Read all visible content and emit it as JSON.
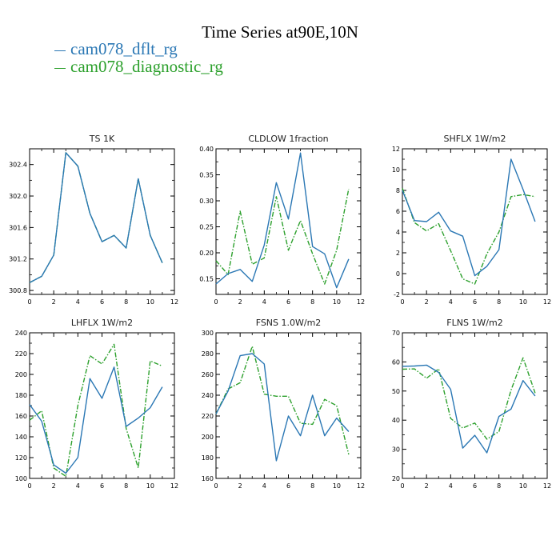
{
  "title": "Time Series at90E,10N",
  "legend": [
    {
      "label": "cam078_dflt_rg",
      "color": "#2a77b4"
    },
    {
      "label": "cam078_diagnostic_rg",
      "color": "#2ca02c"
    }
  ],
  "chart_data": [
    {
      "type": "line",
      "title": "TS",
      "units": "1K",
      "xlim": [
        0,
        12
      ],
      "xticks": [
        0,
        2,
        4,
        6,
        8,
        10,
        12
      ],
      "ylim": [
        300.75,
        302.6
      ],
      "yticks": [
        300.8,
        301.2,
        301.6,
        302.0,
        302.4
      ],
      "ytick_labels": [
        "300.8",
        "301.2",
        "301.6",
        "302.0",
        "302.4"
      ],
      "x": [
        0,
        1,
        2,
        3,
        4,
        5,
        6,
        7,
        8,
        9,
        10,
        11
      ],
      "series": [
        {
          "name": "cam078_dflt_rg",
          "values": [
            300.9,
            300.98,
            301.25,
            302.55,
            302.38,
            301.78,
            301.42,
            301.5,
            301.34,
            302.22,
            301.5,
            301.15
          ]
        },
        {
          "name": "cam078_diagnostic_rg",
          "values": [
            300.9,
            300.98,
            301.25,
            302.55,
            302.38,
            301.78,
            301.42,
            301.5,
            301.34,
            302.22,
            301.5,
            301.15
          ]
        }
      ]
    },
    {
      "type": "line",
      "title": "CLDLOW",
      "units": "1fraction",
      "xlim": [
        0,
        12
      ],
      "xticks": [
        0,
        2,
        4,
        6,
        8,
        10,
        12
      ],
      "ylim": [
        0.12,
        0.4
      ],
      "yticks": [
        0.15,
        0.2,
        0.25,
        0.3,
        0.35,
        0.4
      ],
      "ytick_labels": [
        "0.15",
        "0.20",
        "0.25",
        "0.30",
        "0.35",
        "0.40"
      ],
      "x": [
        0,
        1,
        2,
        3,
        4,
        5,
        6,
        7,
        8,
        9,
        10,
        11
      ],
      "series": [
        {
          "name": "cam078_dflt_rg",
          "values": [
            0.14,
            0.16,
            0.168,
            0.145,
            0.215,
            0.335,
            0.265,
            0.392,
            0.212,
            0.198,
            0.133,
            0.188
          ]
        },
        {
          "name": "cam078_diagnostic_rg",
          "values": [
            0.185,
            0.158,
            0.28,
            0.178,
            0.19,
            0.308,
            0.205,
            0.262,
            0.198,
            0.14,
            0.205,
            0.323
          ]
        }
      ]
    },
    {
      "type": "line",
      "title": "SHFLX",
      "units": "1W/m2",
      "xlim": [
        0,
        12
      ],
      "xticks": [
        0,
        2,
        4,
        6,
        8,
        10,
        12
      ],
      "ylim": [
        -2,
        12
      ],
      "yticks": [
        -2,
        0,
        2,
        4,
        6,
        8,
        10,
        12
      ],
      "ytick_labels": [
        "-2",
        "0",
        "2",
        "4",
        "6",
        "8",
        "10",
        "12"
      ],
      "x": [
        0,
        1,
        2,
        3,
        4,
        5,
        6,
        7,
        8,
        9,
        10,
        11
      ],
      "series": [
        {
          "name": "cam078_dflt_rg",
          "values": [
            8.0,
            5.1,
            5.0,
            5.9,
            4.1,
            3.6,
            -0.2,
            0.7,
            2.3,
            11.0,
            8.1,
            5.0
          ]
        },
        {
          "name": "cam078_diagnostic_rg",
          "values": [
            8.2,
            4.9,
            4.1,
            4.8,
            2.2,
            -0.5,
            -1.0,
            1.9,
            4.0,
            7.4,
            7.6,
            7.4
          ]
        }
      ]
    },
    {
      "type": "line",
      "title": "LHFLX",
      "units": "1W/m2",
      "xlim": [
        0,
        12
      ],
      "xticks": [
        0,
        2,
        4,
        6,
        8,
        10,
        12
      ],
      "ylim": [
        100,
        240
      ],
      "yticks": [
        100,
        120,
        140,
        160,
        180,
        200,
        220,
        240
      ],
      "ytick_labels": [
        "100",
        "120",
        "140",
        "160",
        "180",
        "200",
        "220",
        "240"
      ],
      "x": [
        0,
        1,
        2,
        3,
        4,
        5,
        6,
        7,
        8,
        9,
        10,
        11
      ],
      "series": [
        {
          "name": "cam078_dflt_rg",
          "values": [
            171,
            155,
            113,
            105,
            120,
            196,
            177,
            207,
            150,
            158,
            168,
            188
          ]
        },
        {
          "name": "cam078_diagnostic_rg",
          "values": [
            156,
            165,
            110,
            102,
            170,
            218,
            210,
            229,
            148,
            110,
            213,
            208
          ]
        }
      ]
    },
    {
      "type": "line",
      "title": "FSNS",
      "units": "1.0W/m2",
      "xlim": [
        0,
        12
      ],
      "xticks": [
        0,
        2,
        4,
        6,
        8,
        10,
        12
      ],
      "ylim": [
        160,
        300
      ],
      "yticks": [
        160,
        180,
        200,
        220,
        240,
        260,
        280,
        300
      ],
      "ytick_labels": [
        "160",
        "180",
        "200",
        "220",
        "240",
        "260",
        "280",
        "300"
      ],
      "x": [
        0,
        1,
        2,
        3,
        4,
        5,
        6,
        7,
        8,
        9,
        10,
        11
      ],
      "series": [
        {
          "name": "cam078_dflt_rg",
          "values": [
            222,
            244,
            278,
            280,
            270,
            177,
            220,
            201,
            240,
            201,
            218,
            205
          ]
        },
        {
          "name": "cam078_diagnostic_rg",
          "values": [
            222,
            246,
            252,
            287,
            241,
            239,
            239,
            213,
            212,
            236,
            230,
            183
          ]
        }
      ]
    },
    {
      "type": "line",
      "title": "FLNS",
      "units": "1W/m2",
      "xlim": [
        0,
        12
      ],
      "xticks": [
        0,
        2,
        4,
        6,
        8,
        10,
        12
      ],
      "ylim": [
        20,
        70
      ],
      "yticks": [
        20,
        30,
        40,
        50,
        60,
        70
      ],
      "ytick_labels": [
        "20",
        "30",
        "40",
        "50",
        "60",
        "70"
      ],
      "x": [
        0,
        1,
        2,
        3,
        4,
        5,
        6,
        7,
        8,
        9,
        10,
        11
      ],
      "series": [
        {
          "name": "cam078_dflt_rg",
          "values": [
            58.5,
            58.6,
            58.9,
            56.4,
            50.6,
            30.4,
            34.8,
            28.8,
            41.3,
            43.8,
            53.6,
            48.3
          ]
        },
        {
          "name": "cam078_diagnostic_rg",
          "values": [
            57.5,
            57.6,
            54.4,
            57.6,
            40.6,
            37.3,
            39.0,
            33.5,
            36.1,
            50.3,
            61.4,
            49.3
          ]
        }
      ]
    }
  ]
}
